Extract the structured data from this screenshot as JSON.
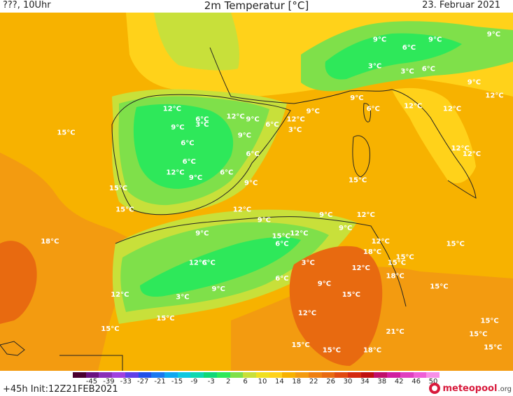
{
  "header": {
    "left": "???, 10Uhr",
    "title": "2m Temperatur [°C]",
    "date": "23. Februar 2021"
  },
  "map": {
    "colors": {
      "cold_green": "#2ee85a",
      "light_green": "#7fe04a",
      "yellow_green": "#c8e03a",
      "yellow": "#ffd21a",
      "orange_yellow": "#f7b200",
      "orange": "#f39b10",
      "dark_orange": "#e86a10"
    },
    "labels": [
      {
        "text": "15°C",
        "lon": -23.0,
        "lat": 42.8
      },
      {
        "text": "18°C",
        "lon": -25.0,
        "lat": 34.6
      },
      {
        "text": "15°C",
        "lon": -15.8,
        "lat": 37.0
      },
      {
        "text": "15°C",
        "lon": -16.6,
        "lat": 38.6
      },
      {
        "text": "12°C",
        "lon": -16.4,
        "lat": 30.6
      },
      {
        "text": "15°C",
        "lon": -17.6,
        "lat": 28.0
      },
      {
        "text": "15°C",
        "lon": -10.8,
        "lat": 28.8
      },
      {
        "text": "12°C",
        "lon": -10.0,
        "lat": 44.6
      },
      {
        "text": "6°C",
        "lon": -6.0,
        "lat": 43.8
      },
      {
        "text": "3°C",
        "lon": -6.0,
        "lat": 43.4
      },
      {
        "text": "9°C",
        "lon": -9.0,
        "lat": 43.2
      },
      {
        "text": "6°C",
        "lon": -7.8,
        "lat": 42.0
      },
      {
        "text": "6°C",
        "lon": -7.6,
        "lat": 40.6
      },
      {
        "text": "12°C",
        "lon": -9.6,
        "lat": 39.8
      },
      {
        "text": "9°C",
        "lon": -6.8,
        "lat": 39.4
      },
      {
        "text": "6°C",
        "lon": -3.0,
        "lat": 39.8
      },
      {
        "text": "6°C",
        "lon": 0.2,
        "lat": 41.2
      },
      {
        "text": "9°C",
        "lon": 0.0,
        "lat": 39.0
      },
      {
        "text": "12°C",
        "lon": -1.4,
        "lat": 37.0
      },
      {
        "text": "9°C",
        "lon": -0.8,
        "lat": 42.6
      },
      {
        "text": "12°C",
        "lon": -2.2,
        "lat": 44.0
      },
      {
        "text": "9°C",
        "lon": 0.2,
        "lat": 43.8
      },
      {
        "text": "6°C",
        "lon": 2.6,
        "lat": 43.4
      },
      {
        "text": "12°C",
        "lon": 5.2,
        "lat": 43.8
      },
      {
        "text": "3°C",
        "lon": 5.4,
        "lat": 43.0
      },
      {
        "text": "9°C",
        "lon": 7.6,
        "lat": 44.4
      },
      {
        "text": "9°C",
        "lon": 13.0,
        "lat": 45.4
      },
      {
        "text": "6°C",
        "lon": 15.0,
        "lat": 44.6
      },
      {
        "text": "12°C",
        "lon": 19.6,
        "lat": 44.8
      },
      {
        "text": "3°C",
        "lon": 15.2,
        "lat": 47.8
      },
      {
        "text": "3°C",
        "lon": 19.2,
        "lat": 47.4
      },
      {
        "text": "6°C",
        "lon": 21.8,
        "lat": 47.6
      },
      {
        "text": "6°C",
        "lon": 19.4,
        "lat": 49.2
      },
      {
        "text": "9°C",
        "lon": 15.8,
        "lat": 49.8
      },
      {
        "text": "9°C",
        "lon": 22.6,
        "lat": 49.8
      },
      {
        "text": "9°C",
        "lon": 29.8,
        "lat": 50.2
      },
      {
        "text": "9°C",
        "lon": 27.4,
        "lat": 46.6
      },
      {
        "text": "12°C",
        "lon": 29.6,
        "lat": 45.6
      },
      {
        "text": "12°C",
        "lon": 24.4,
        "lat": 44.6
      },
      {
        "text": "12°C",
        "lon": 25.4,
        "lat": 41.6
      },
      {
        "text": "12°C",
        "lon": 26.8,
        "lat": 41.2
      },
      {
        "text": "15°C",
        "lon": 12.8,
        "lat": 39.2
      },
      {
        "text": "15°C",
        "lon": 24.8,
        "lat": 34.4
      },
      {
        "text": "15°C",
        "lon": 18.6,
        "lat": 33.4
      },
      {
        "text": "15°C",
        "lon": 22.8,
        "lat": 31.2
      },
      {
        "text": "15°C",
        "lon": 29.0,
        "lat": 28.6
      },
      {
        "text": "15°C",
        "lon": 27.6,
        "lat": 27.6
      },
      {
        "text": "15°C",
        "lon": 29.4,
        "lat": 26.6
      },
      {
        "text": "12°C",
        "lon": 13.8,
        "lat": 36.6
      },
      {
        "text": "9°C",
        "lon": 9.2,
        "lat": 36.6
      },
      {
        "text": "9°C",
        "lon": 11.6,
        "lat": 35.6
      },
      {
        "text": "12°C",
        "lon": 15.6,
        "lat": 34.6
      },
      {
        "text": "15°C",
        "lon": 17.6,
        "lat": 33.0
      },
      {
        "text": "18°C",
        "lon": 17.4,
        "lat": 32.0
      },
      {
        "text": "18°C",
        "lon": 14.6,
        "lat": 33.8
      },
      {
        "text": "12°C",
        "lon": 13.2,
        "lat": 32.6
      },
      {
        "text": "15°C",
        "lon": 12.0,
        "lat": 30.6
      },
      {
        "text": "21°C",
        "lon": 17.4,
        "lat": 27.8
      },
      {
        "text": "18°C",
        "lon": 14.6,
        "lat": 26.4
      },
      {
        "text": "15°C",
        "lon": 9.6,
        "lat": 26.4
      },
      {
        "text": "15°C",
        "lon": 5.8,
        "lat": 26.8
      },
      {
        "text": "12°C",
        "lon": 6.6,
        "lat": 29.2
      },
      {
        "text": "9°C",
        "lon": 1.6,
        "lat": 36.2
      },
      {
        "text": "12°C",
        "lon": 5.6,
        "lat": 35.2
      },
      {
        "text": "15°C",
        "lon": 3.4,
        "lat": 35.0
      },
      {
        "text": "6°C",
        "lon": 3.8,
        "lat": 34.4
      },
      {
        "text": "3°C",
        "lon": 7.0,
        "lat": 33.0
      },
      {
        "text": "6°C",
        "lon": 3.8,
        "lat": 31.8
      },
      {
        "text": "9°C",
        "lon": 9.0,
        "lat": 31.4
      },
      {
        "text": "9°C",
        "lon": -6.0,
        "lat": 35.2
      },
      {
        "text": "12°C",
        "lon": -6.8,
        "lat": 33.0
      },
      {
        "text": "6°C",
        "lon": -5.2,
        "lat": 33.0
      },
      {
        "text": "9°C",
        "lon": -4.0,
        "lat": 31.0
      },
      {
        "text": "3°C",
        "lon": -8.4,
        "lat": 30.4
      }
    ]
  },
  "colorbar": {
    "colors": [
      "#4a0030",
      "#6a1080",
      "#8a30b8",
      "#a040e0",
      "#6040e8",
      "#2050e8",
      "#1a78f0",
      "#10a8f0",
      "#10c8e0",
      "#10d8b0",
      "#10d878",
      "#2ee85a",
      "#7fe04a",
      "#c8e03a",
      "#f0e020",
      "#ffd21a",
      "#f7b200",
      "#f39b10",
      "#ee7f10",
      "#e86a10",
      "#e04a10",
      "#d42a10",
      "#c01010",
      "#c0106a",
      "#d020a0",
      "#e040c0",
      "#f060d8",
      "#f890e8"
    ],
    "ticks": [
      "-45",
      "-39",
      "-33",
      "-27",
      "-21",
      "-15",
      "-9",
      "-3",
      "2",
      "6",
      "10",
      "14",
      "18",
      "22",
      "26",
      "30",
      "34",
      "38",
      "42",
      "46",
      "50"
    ]
  },
  "footer": {
    "run": "+45h  Init:12Z21FEB2021",
    "logo_main": "meteopool",
    "logo_suffix": ".org"
  }
}
